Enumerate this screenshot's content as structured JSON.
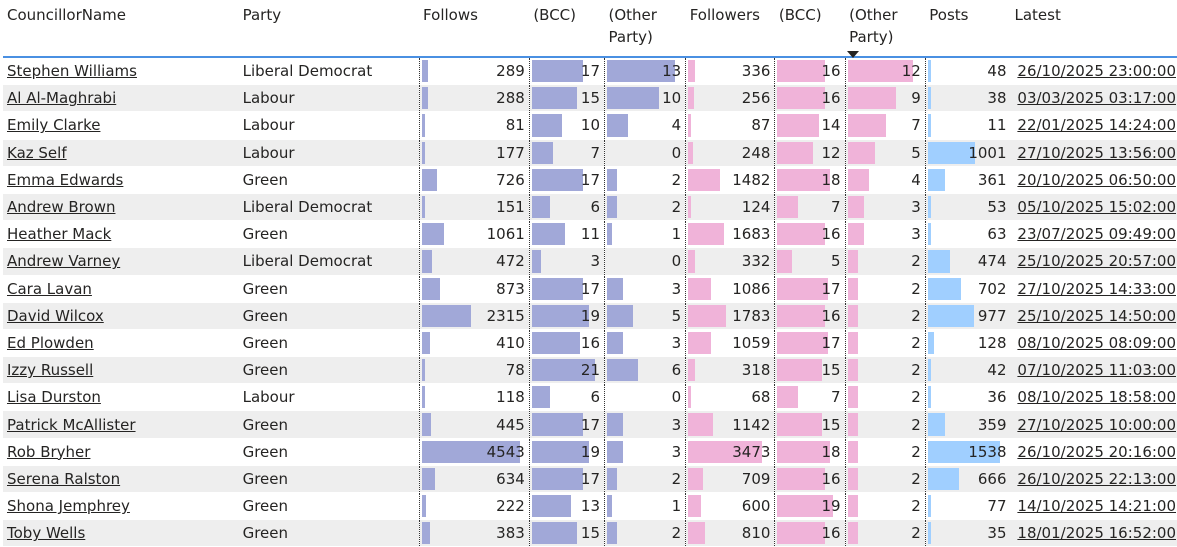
{
  "colors": {
    "follows": "#a1a8d8",
    "followers": "#f0b3d9",
    "posts": "#a0cfff"
  },
  "headers": [
    "CouncillorName",
    "Party",
    "Follows",
    "(BCC)",
    "(Other Party)",
    "Followers",
    "(BCC)",
    "(Other Party)",
    "Posts",
    "Latest"
  ],
  "rows": [
    [
      "Stephen Williams",
      "Liberal Democrat",
      289,
      17,
      13,
      336,
      16,
      12,
      48,
      "26/10/2025 23:00:00"
    ],
    [
      "Al Al-Maghrabi",
      "Labour",
      288,
      15,
      10,
      256,
      16,
      9,
      38,
      "03/03/2025 03:17:00"
    ],
    [
      "Emily Clarke",
      "Labour",
      81,
      10,
      4,
      87,
      14,
      7,
      11,
      "22/01/2025 14:24:00"
    ],
    [
      "Kaz Self",
      "Labour",
      177,
      7,
      0,
      248,
      12,
      5,
      1001,
      "27/10/2025 13:56:00"
    ],
    [
      "Emma Edwards",
      "Green",
      726,
      17,
      2,
      1482,
      18,
      4,
      361,
      "20/10/2025 06:50:00"
    ],
    [
      "Andrew Brown",
      "Liberal Democrat",
      151,
      6,
      2,
      124,
      7,
      3,
      53,
      "05/10/2025 15:02:00"
    ],
    [
      "Heather Mack",
      "Green",
      1061,
      11,
      1,
      1683,
      16,
      3,
      63,
      "23/07/2025 09:49:00"
    ],
    [
      "Andrew Varney",
      "Liberal Democrat",
      472,
      3,
      0,
      332,
      5,
      2,
      474,
      "25/10/2025 20:57:00"
    ],
    [
      "Cara Lavan",
      "Green",
      873,
      17,
      3,
      1086,
      17,
      2,
      702,
      "27/10/2025 14:33:00"
    ],
    [
      "David Wilcox",
      "Green",
      2315,
      19,
      5,
      1783,
      16,
      2,
      977,
      "25/10/2025 14:50:00"
    ],
    [
      "Ed Plowden",
      "Green",
      410,
      16,
      3,
      1059,
      17,
      2,
      128,
      "08/10/2025 08:09:00"
    ],
    [
      "Izzy Russell",
      "Green",
      78,
      21,
      6,
      318,
      15,
      2,
      42,
      "07/10/2025 11:03:00"
    ],
    [
      "Lisa Durston",
      "Labour",
      118,
      6,
      0,
      68,
      7,
      2,
      36,
      "08/10/2025 18:58:00"
    ],
    [
      "Patrick McAllister",
      "Green",
      445,
      17,
      3,
      1142,
      15,
      2,
      359,
      "27/10/2025 10:00:00"
    ],
    [
      "Rob Bryher",
      "Green",
      4543,
      19,
      3,
      3473,
      18,
      2,
      1538,
      "26/10/2025 20:16:00"
    ],
    [
      "Serena Ralston",
      "Green",
      634,
      17,
      2,
      709,
      16,
      2,
      666,
      "26/10/2025 22:13:00"
    ],
    [
      "Shona Jemphrey",
      "Green",
      222,
      13,
      1,
      600,
      19,
      2,
      77,
      "14/10/2025 14:21:00"
    ],
    [
      "Toby Wells",
      "Green",
      383,
      15,
      2,
      810,
      16,
      2,
      35,
      "18/01/2025 16:52:00"
    ]
  ]
}
